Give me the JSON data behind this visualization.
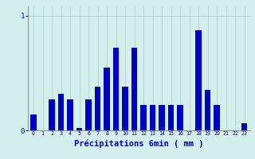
{
  "categories": [
    0,
    1,
    2,
    3,
    4,
    5,
    6,
    7,
    8,
    9,
    10,
    11,
    12,
    13,
    14,
    15,
    16,
    17,
    18,
    19,
    20,
    21,
    22,
    23
  ],
  "values": [
    0.14,
    0.0,
    0.27,
    0.32,
    0.27,
    0.02,
    0.27,
    0.38,
    0.55,
    0.72,
    0.38,
    0.72,
    0.22,
    0.22,
    0.22,
    0.22,
    0.22,
    0.0,
    0.87,
    0.35,
    0.22,
    0.0,
    0.0,
    0.06
  ],
  "bar_color": "#0000cc",
  "bg_color": "#d4f0ec",
  "grid_color": "#b0c8c4",
  "xlabel": "Précipitations 6min ( mm )",
  "ylim": [
    0,
    1.08
  ],
  "xlim": [
    -0.6,
    23.6
  ]
}
